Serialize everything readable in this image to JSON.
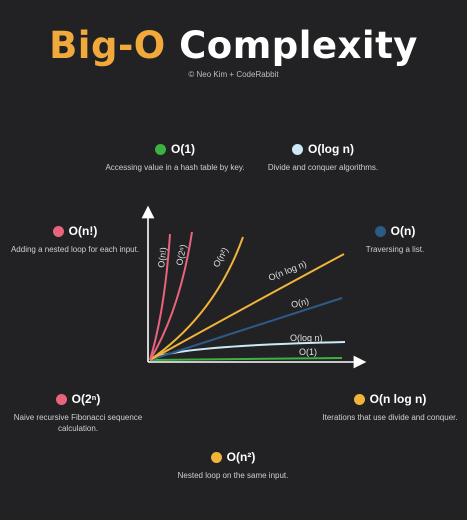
{
  "title_part1": "Big-O",
  "title_part2": "Complexity",
  "credit": "© Neo Kim + CodeRabbit",
  "notes": {
    "o1": {
      "label": "O(1)",
      "desc": "Accessing value in a hash table by key.",
      "color": "#3cb043"
    },
    "ologn": {
      "label": "O(log n)",
      "desc": "Divide and conquer algorithms.",
      "color": "#cde8f6"
    },
    "onfact": {
      "label": "O(n!)",
      "desc": "Adding a nested loop for each input.",
      "color": "#e8647c"
    },
    "on": {
      "label": "O(n)",
      "desc": "Traversing a list.",
      "color": "#2d5a86"
    },
    "o2n": {
      "label": "O(2ⁿ)",
      "desc": "Naive recursive Fibonacci sequence calculation.",
      "color": "#e8647c"
    },
    "onlogn": {
      "label": "O(n log n)",
      "desc": "Iterations that use divide and conquer.",
      "color": "#f0b43a"
    },
    "on2": {
      "label": "O(n²)",
      "desc": "Nested loop on the same input.",
      "color": "#f0b43a"
    }
  },
  "curves": {
    "nfact": {
      "label": "O(n!)",
      "color": "#e8647c"
    },
    "twon": {
      "label": "O(2ⁿ)",
      "color": "#e8647c"
    },
    "nsq": {
      "label": "O(n²)",
      "color": "#f0b43a"
    },
    "nlogn": {
      "label": "O(n log n)",
      "color": "#f0b43a"
    },
    "n": {
      "label": "O(n)",
      "color": "#2d5a86"
    },
    "logn": {
      "label": "O(log n)",
      "color": "#cde8f6"
    },
    "one": {
      "label": "O(1)",
      "color": "#3cb043"
    }
  }
}
